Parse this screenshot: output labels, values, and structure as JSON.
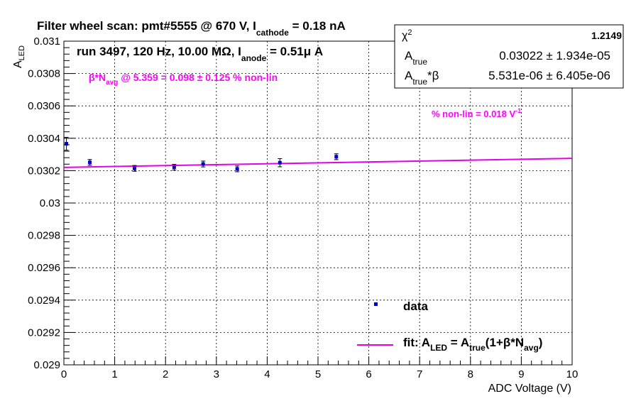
{
  "title": {
    "main": "Filter wheel scan: pmt#5555 @   670 V, I",
    "sub": "cathode",
    "tail": " = 0.18 nA"
  },
  "run_info": {
    "main": "run 3497, 120 Hz, 10.00 MΩ, I",
    "sub": "anode",
    "tail": " = 0.51μ A"
  },
  "beta_annotation": {
    "pre": "β*N",
    "sub": "avg",
    "tail": " @ 5.359 = 0.098 ± 0.125 % non-lin"
  },
  "nonlin_annotation": {
    "main": "% non-lin = 0.018 V",
    "sup": "-1"
  },
  "stats_box": {
    "rows": [
      {
        "label": "χ",
        "label_sup": "2",
        "label_sub": "",
        "label_tail": "",
        "value": "1.2149"
      },
      {
        "label": "A",
        "label_sup": "",
        "label_sub": "true",
        "label_tail": "",
        "value": "0.03022 ± 1.934e-05"
      },
      {
        "label": "A",
        "label_sup": "",
        "label_sub": "true",
        "label_tail": "*β",
        "value": "5.531e-06 ± 6.405e-06"
      }
    ]
  },
  "legend": {
    "data_label": "data",
    "fit_label": {
      "p1": "fit: A",
      "s1": "LED",
      "p2": " = A",
      "s2": "true",
      "p3": "(1+β*N",
      "s3": "avg",
      "p4": ")"
    }
  },
  "colors": {
    "data_marker": "#0000cc",
    "fit_line": "#e600e6",
    "annotation": "#ff00ff",
    "axis": "#000000",
    "grid": "#000000"
  },
  "chart_data": {
    "type": "scatter",
    "xlabel": "ADC Voltage (V)",
    "ylabel": "A",
    "ylabel_sub": "LED",
    "xlim": [
      0,
      10
    ],
    "ylim": [
      0.029,
      0.031
    ],
    "grid": true,
    "x_ticks": [
      0,
      1,
      2,
      3,
      4,
      5,
      6,
      7,
      8,
      9,
      10
    ],
    "x_tick_labels": [
      "0",
      "1",
      "2",
      "3",
      "4",
      "5",
      "6",
      "7",
      "8",
      "9",
      "10"
    ],
    "y_ticks": [
      0.029,
      0.0292,
      0.0294,
      0.0296,
      0.0298,
      0.03,
      0.0302,
      0.0304,
      0.0306,
      0.0308,
      0.031
    ],
    "y_tick_labels": [
      "0.029",
      "0.0292",
      "0.0294",
      "0.0296",
      "0.0298",
      "0.03",
      "0.0302",
      "0.0304",
      "0.0306",
      "0.0308",
      "0.031"
    ],
    "series": [
      {
        "name": "data",
        "type": "scatter",
        "points": [
          {
            "x": 0.05,
            "y": 0.030366,
            "err": 4e-05
          },
          {
            "x": 0.51,
            "y": 0.030251,
            "err": 1.8e-05
          },
          {
            "x": 1.39,
            "y": 0.030214,
            "err": 1.8e-05
          },
          {
            "x": 2.17,
            "y": 0.030221,
            "err": 1.8e-05
          },
          {
            "x": 2.74,
            "y": 0.030241,
            "err": 1.8e-05
          },
          {
            "x": 3.41,
            "y": 0.030211,
            "err": 1.8e-05
          },
          {
            "x": 4.25,
            "y": 0.030249,
            "err": 2.5e-05
          },
          {
            "x": 5.36,
            "y": 0.030286,
            "err": 1.8e-05
          }
        ]
      },
      {
        "name": "fit",
        "type": "line",
        "x": [
          0,
          10
        ],
        "y": [
          0.03022,
          0.030276
        ]
      }
    ]
  }
}
